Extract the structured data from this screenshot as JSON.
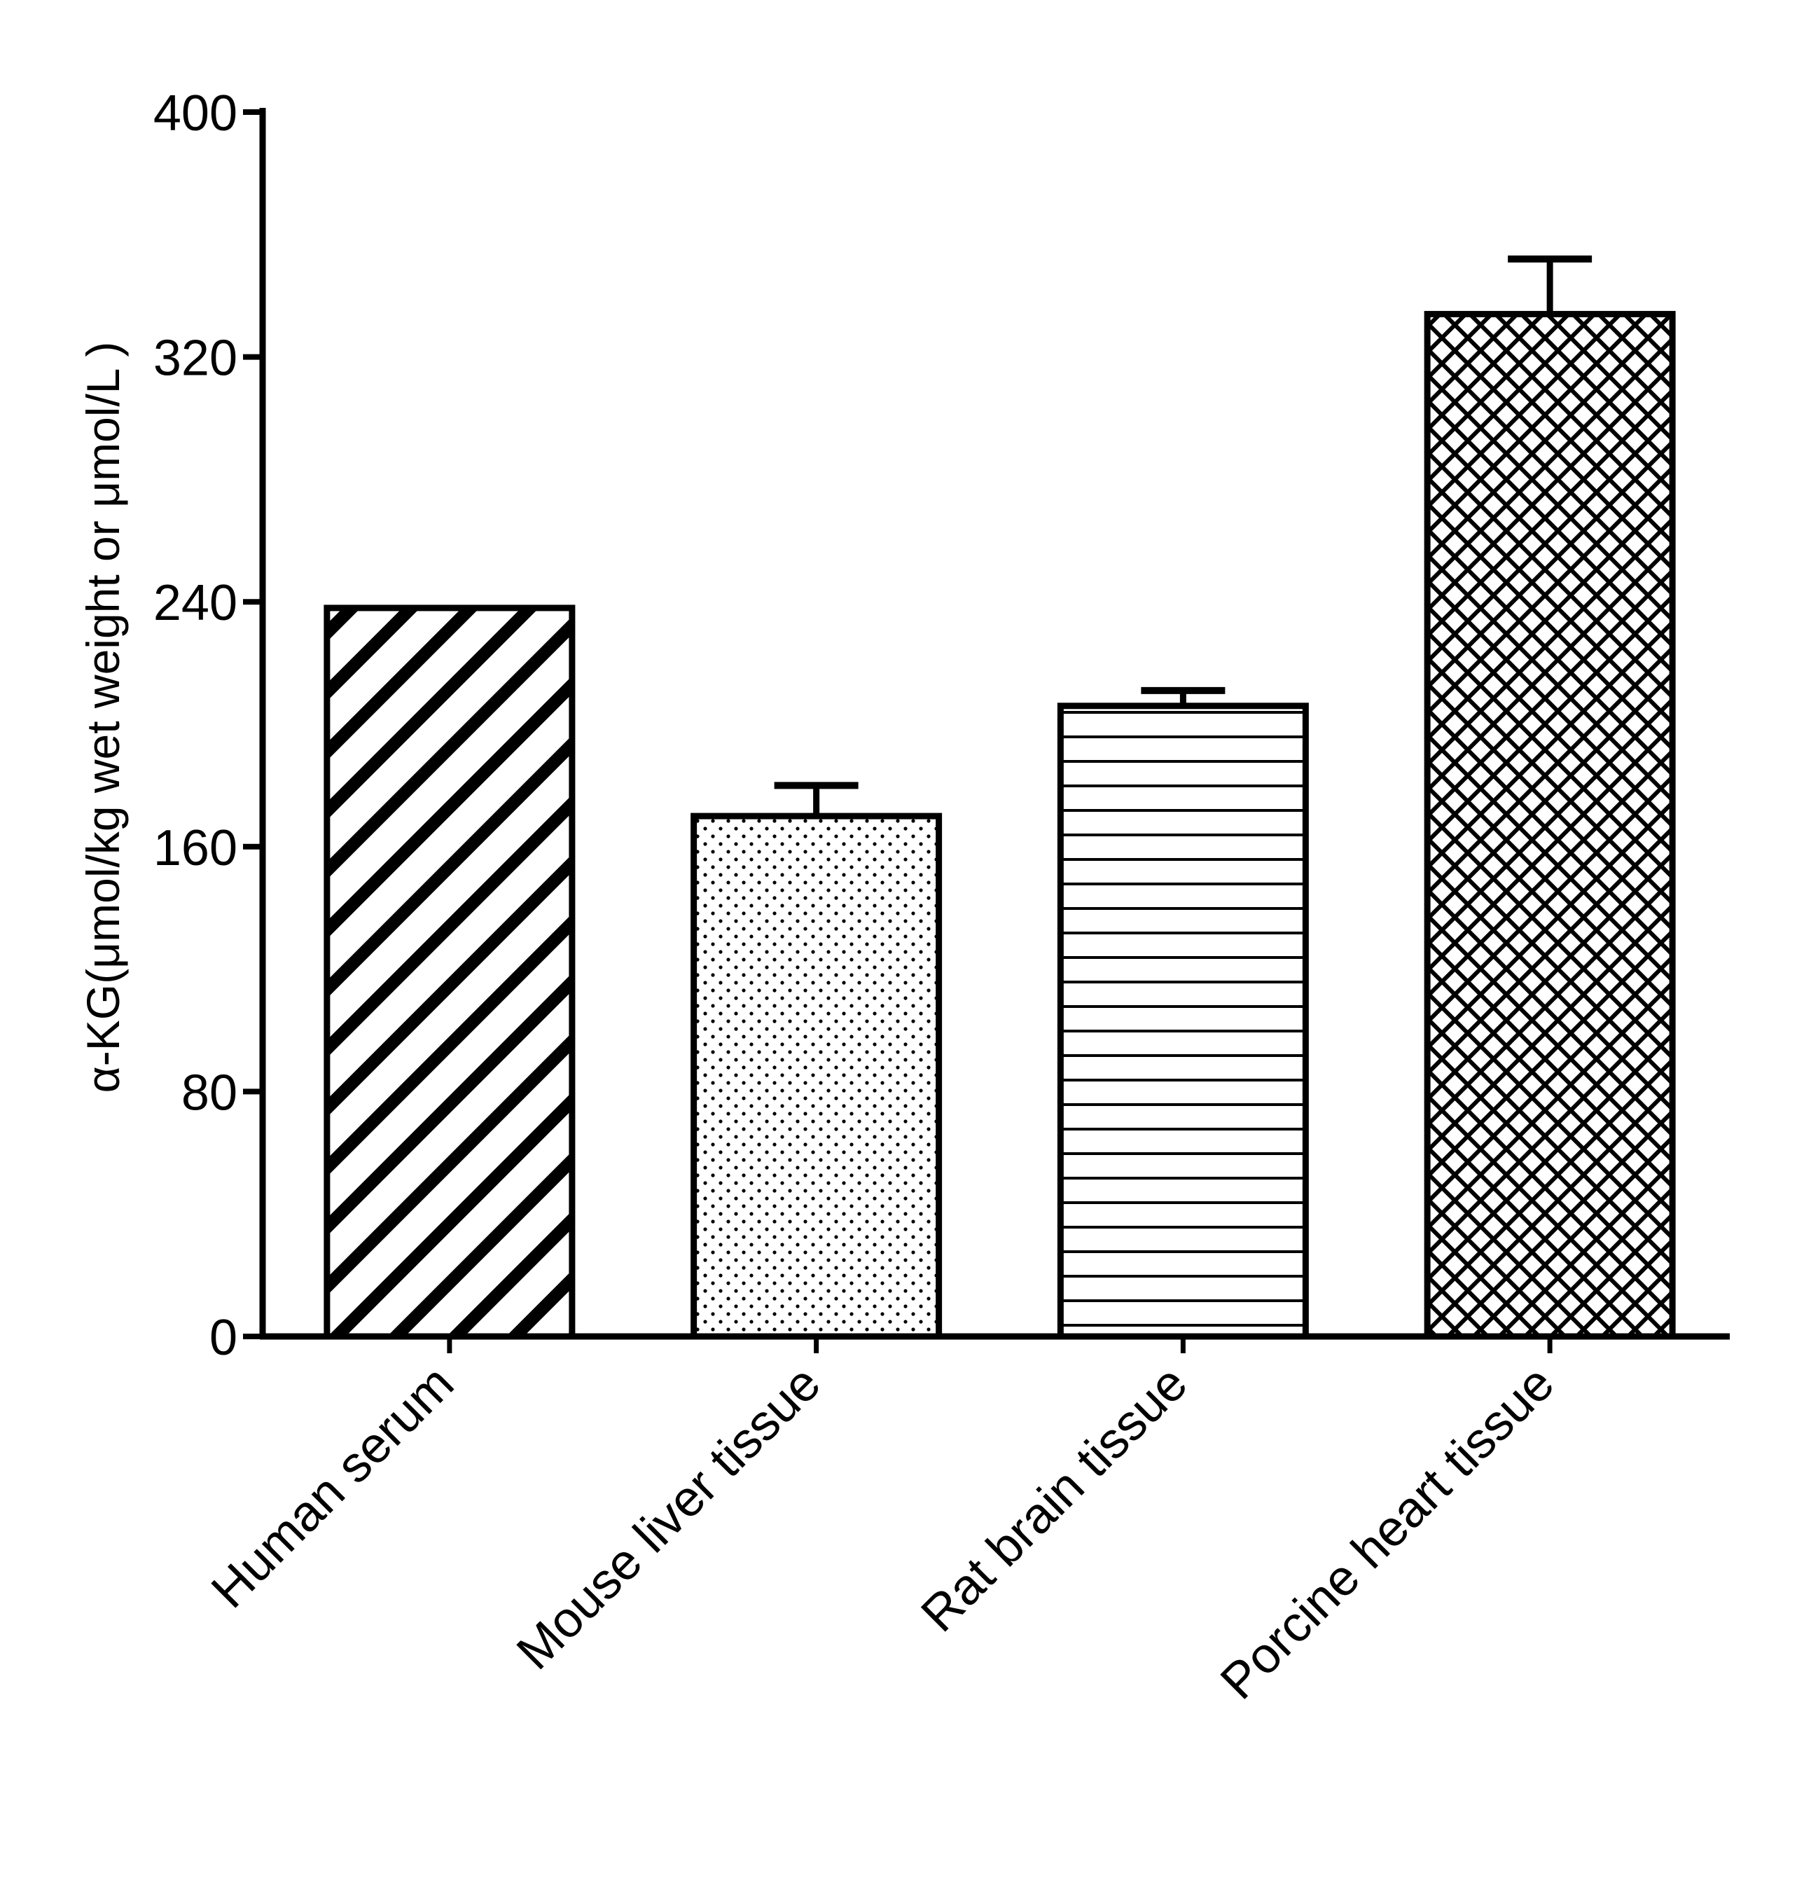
{
  "chart_data": {
    "type": "bar",
    "title": "",
    "xlabel": "",
    "ylabel": "α-KG(μmol/kg wet weight or μmol/L )",
    "ylim": [
      0,
      400
    ],
    "yticks": [
      0,
      80,
      160,
      240,
      320,
      400
    ],
    "grid": false,
    "categories": [
      "Human serum",
      "Mouse liver tissue",
      "Rat brain tissue",
      "Porcine heart tissue"
    ],
    "values": [
      238,
      170,
      206,
      334
    ],
    "errors": [
      0,
      10,
      5,
      18
    ],
    "patterns": [
      "diagonal-stripes",
      "dots",
      "horizontal-lines",
      "crosshatch"
    ]
  }
}
